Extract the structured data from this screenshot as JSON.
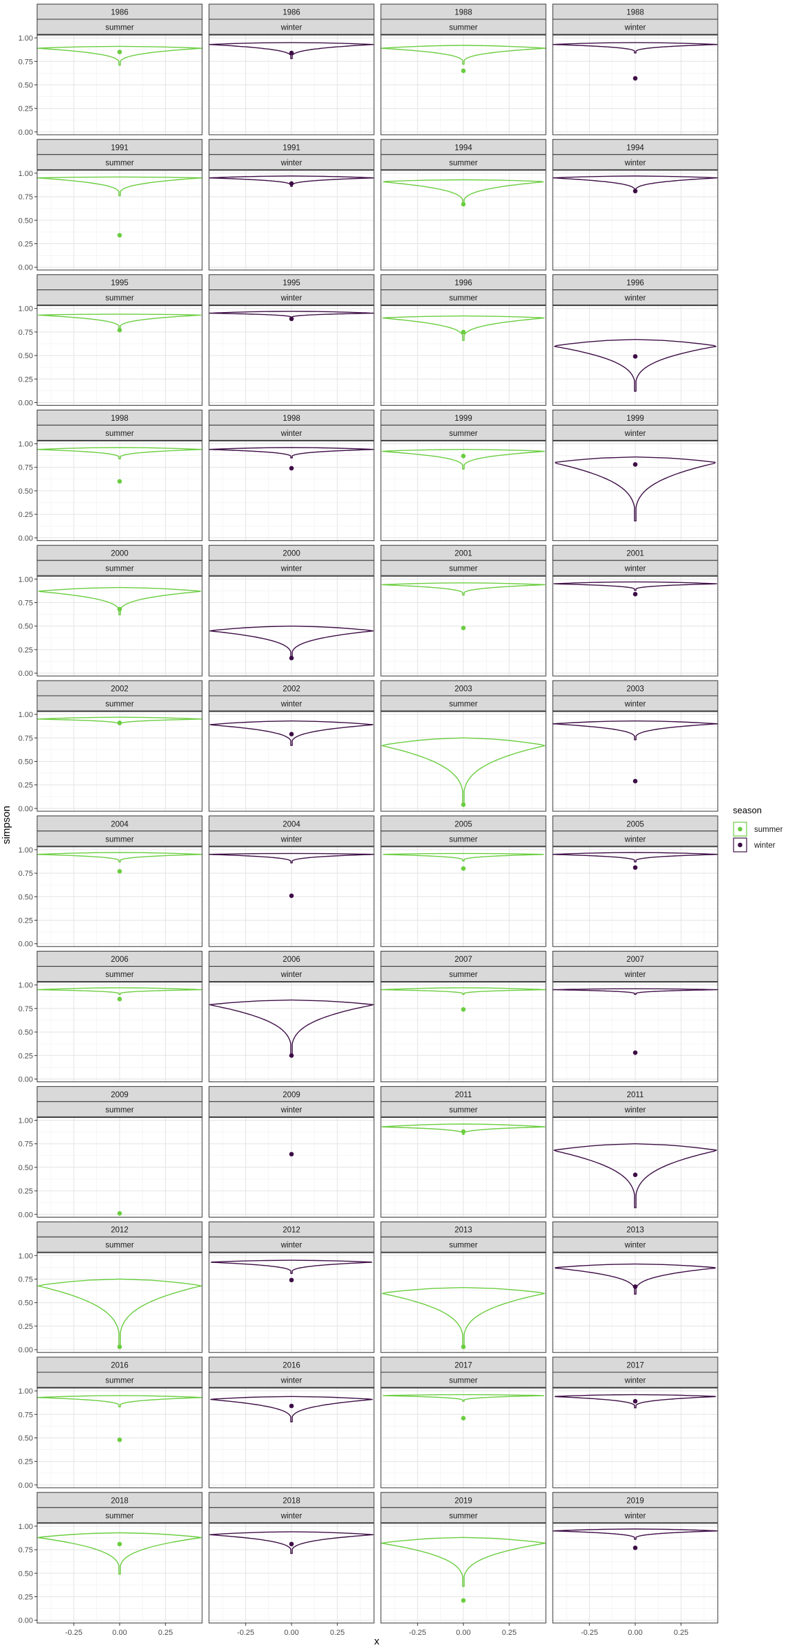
{
  "chart_data": {
    "type": "violin",
    "title": "",
    "xlabel": "x",
    "ylabel": "simpson",
    "xlim": [
      -0.45,
      0.45
    ],
    "ylim": [
      -0.03,
      1.03
    ],
    "x_ticks": [
      -0.25,
      0.0,
      0.25
    ],
    "x_tick_labels": [
      "-0.25",
      "0.00",
      "0.25"
    ],
    "y_ticks": [
      0,
      0.25,
      0.5,
      0.75,
      1.0
    ],
    "y_tick_labels": [
      "0.00",
      "0.25",
      "0.50",
      "0.75",
      "1.00"
    ],
    "grid": true,
    "facet_rows": [
      "year",
      "season"
    ],
    "ncol": 4,
    "legend": {
      "title": "season",
      "position": "right",
      "entries": [
        {
          "label": "summer",
          "color": "#6ACD3F"
        },
        {
          "label": "winter",
          "color": "#3D0D45"
        }
      ]
    },
    "colors": {
      "summer": "#6ACD3F",
      "winter": "#3D0D45"
    },
    "panels": [
      {
        "year": "1986",
        "season": "summer",
        "point": 0.85,
        "ymin": 0.71,
        "ymax": 0.91,
        "mode": 0.89
      },
      {
        "year": "1986",
        "season": "winter",
        "point": 0.84,
        "ymin": 0.78,
        "ymax": 0.95,
        "mode": 0.93
      },
      {
        "year": "1988",
        "season": "summer",
        "point": 0.65,
        "ymin": 0.72,
        "ymax": 0.92,
        "mode": 0.89
      },
      {
        "year": "1988",
        "season": "winter",
        "point": 0.57,
        "ymin": 0.84,
        "ymax": 0.95,
        "mode": 0.93
      },
      {
        "year": "1991",
        "season": "summer",
        "point": 0.34,
        "ymin": 0.76,
        "ymax": 0.96,
        "mode": 0.95
      },
      {
        "year": "1991",
        "season": "winter",
        "point": 0.89,
        "ymin": 0.86,
        "ymax": 0.97,
        "mode": 0.95
      },
      {
        "year": "1994",
        "season": "summer",
        "point": 0.67,
        "ymin": 0.66,
        "ymax": 0.93,
        "mode": 0.91
      },
      {
        "year": "1994",
        "season": "winter",
        "point": 0.81,
        "ymin": 0.8,
        "ymax": 0.97,
        "mode": 0.95
      },
      {
        "year": "1995",
        "season": "summer",
        "point": 0.77,
        "ymin": 0.78,
        "ymax": 0.94,
        "mode": 0.93
      },
      {
        "year": "1995",
        "season": "winter",
        "point": 0.89,
        "ymin": 0.9,
        "ymax": 0.97,
        "mode": 0.95
      },
      {
        "year": "1996",
        "season": "summer",
        "point": 0.75,
        "ymin": 0.66,
        "ymax": 0.92,
        "mode": 0.9
      },
      {
        "year": "1996",
        "season": "winter",
        "point": 0.49,
        "ymin": 0.12,
        "ymax": 0.67,
        "mode": 0.6
      },
      {
        "year": "1998",
        "season": "summer",
        "point": 0.6,
        "ymin": 0.84,
        "ymax": 0.96,
        "mode": 0.94
      },
      {
        "year": "1998",
        "season": "winter",
        "point": 0.74,
        "ymin": 0.85,
        "ymax": 0.96,
        "mode": 0.94
      },
      {
        "year": "1999",
        "season": "summer",
        "point": 0.87,
        "ymin": 0.73,
        "ymax": 0.94,
        "mode": 0.92
      },
      {
        "year": "1999",
        "season": "winter",
        "point": 0.78,
        "ymin": 0.18,
        "ymax": 0.86,
        "mode": 0.8
      },
      {
        "year": "2000",
        "season": "summer",
        "point": 0.68,
        "ymin": 0.62,
        "ymax": 0.91,
        "mode": 0.87
      },
      {
        "year": "2000",
        "season": "winter",
        "point": 0.16,
        "ymin": 0.16,
        "ymax": 0.5,
        "mode": 0.45
      },
      {
        "year": "2001",
        "season": "summer",
        "point": 0.48,
        "ymin": 0.83,
        "ymax": 0.96,
        "mode": 0.94
      },
      {
        "year": "2001",
        "season": "winter",
        "point": 0.84,
        "ymin": 0.88,
        "ymax": 0.97,
        "mode": 0.95
      },
      {
        "year": "2002",
        "season": "summer",
        "point": 0.91,
        "ymin": 0.89,
        "ymax": 0.97,
        "mode": 0.95
      },
      {
        "year": "2002",
        "season": "winter",
        "point": 0.79,
        "ymin": 0.67,
        "ymax": 0.93,
        "mode": 0.89
      },
      {
        "year": "2003",
        "season": "summer",
        "point": 0.04,
        "ymin": 0.04,
        "ymax": 0.75,
        "mode": 0.67
      },
      {
        "year": "2003",
        "season": "winter",
        "point": 0.29,
        "ymin": 0.73,
        "ymax": 0.93,
        "mode": 0.9
      },
      {
        "year": "2004",
        "season": "summer",
        "point": 0.77,
        "ymin": 0.87,
        "ymax": 0.97,
        "mode": 0.95
      },
      {
        "year": "2004",
        "season": "winter",
        "point": 0.51,
        "ymin": 0.86,
        "ymax": 0.96,
        "mode": 0.95
      },
      {
        "year": "2005",
        "season": "summer",
        "point": 0.8,
        "ymin": 0.88,
        "ymax": 0.96,
        "mode": 0.95
      },
      {
        "year": "2005",
        "season": "winter",
        "point": 0.81,
        "ymin": 0.87,
        "ymax": 0.97,
        "mode": 0.95
      },
      {
        "year": "2006",
        "season": "summer",
        "point": 0.85,
        "ymin": 0.9,
        "ymax": 0.97,
        "mode": 0.95
      },
      {
        "year": "2006",
        "season": "winter",
        "point": 0.25,
        "ymin": 0.25,
        "ymax": 0.84,
        "mode": 0.79
      },
      {
        "year": "2007",
        "season": "summer",
        "point": 0.74,
        "ymin": 0.9,
        "ymax": 0.97,
        "mode": 0.95
      },
      {
        "year": "2007",
        "season": "winter",
        "point": 0.28,
        "ymin": 0.9,
        "ymax": 0.96,
        "mode": 0.95
      },
      {
        "year": "2009",
        "season": "summer",
        "point": 0.01
      },
      {
        "year": "2009",
        "season": "winter",
        "point": 0.64
      },
      {
        "year": "2011",
        "season": "summer",
        "point": 0.88,
        "ymin": 0.85,
        "ymax": 0.96,
        "mode": 0.93
      },
      {
        "year": "2011",
        "season": "winter",
        "point": 0.42,
        "ymin": 0.07,
        "ymax": 0.75,
        "mode": 0.68
      },
      {
        "year": "2012",
        "season": "summer",
        "point": 0.03,
        "ymin": 0.03,
        "ymax": 0.75,
        "mode": 0.68
      },
      {
        "year": "2012",
        "season": "winter",
        "point": 0.74,
        "ymin": 0.81,
        "ymax": 0.95,
        "mode": 0.93
      },
      {
        "year": "2013",
        "season": "summer",
        "point": 0.03,
        "ymin": 0.03,
        "ymax": 0.66,
        "mode": 0.6
      },
      {
        "year": "2013",
        "season": "winter",
        "point": 0.67,
        "ymin": 0.59,
        "ymax": 0.91,
        "mode": 0.87
      },
      {
        "year": "2016",
        "season": "summer",
        "point": 0.48,
        "ymin": 0.83,
        "ymax": 0.95,
        "mode": 0.93
      },
      {
        "year": "2016",
        "season": "winter",
        "point": 0.84,
        "ymin": 0.67,
        "ymax": 0.94,
        "mode": 0.91
      },
      {
        "year": "2017",
        "season": "summer",
        "point": 0.71,
        "ymin": 0.89,
        "ymax": 0.96,
        "mode": 0.95
      },
      {
        "year": "2017",
        "season": "winter",
        "point": 0.89,
        "ymin": 0.82,
        "ymax": 0.96,
        "mode": 0.94
      },
      {
        "year": "2018",
        "season": "summer",
        "point": 0.81,
        "ymin": 0.49,
        "ymax": 0.93,
        "mode": 0.88
      },
      {
        "year": "2018",
        "season": "winter",
        "point": 0.81,
        "ymin": 0.71,
        "ymax": 0.94,
        "mode": 0.91
      },
      {
        "year": "2019",
        "season": "summer",
        "point": 0.21,
        "ymin": 0.36,
        "ymax": 0.88,
        "mode": 0.82
      },
      {
        "year": "2019",
        "season": "winter",
        "point": 0.77,
        "ymin": 0.86,
        "ymax": 0.97,
        "mode": 0.95
      }
    ]
  }
}
